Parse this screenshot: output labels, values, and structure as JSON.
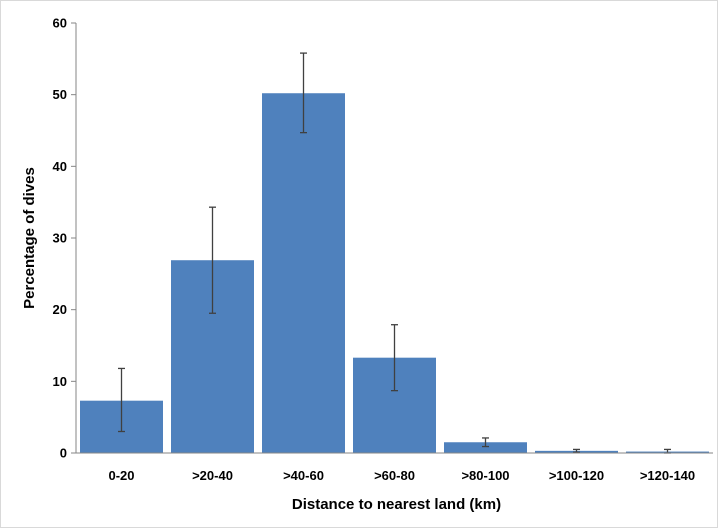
{
  "chart_data": {
    "type": "bar",
    "title": "",
    "xlabel": "Distance to nearest land (km)",
    "ylabel": "Percentage of dives",
    "categories": [
      "0-20",
      ">20-40",
      ">40-60",
      ">60-80",
      ">80-100",
      ">100-120",
      ">120-140"
    ],
    "values": [
      7.3,
      26.9,
      50.2,
      13.3,
      1.5,
      0.3,
      0.2
    ],
    "error_low": [
      3.0,
      19.5,
      44.7,
      8.7,
      0.9,
      0.1,
      0.0
    ],
    "error_high": [
      11.8,
      34.3,
      55.8,
      17.9,
      2.1,
      0.5,
      0.5
    ],
    "ylim": [
      0,
      60
    ],
    "yticks": [
      "0",
      "10",
      "20",
      "30",
      "40",
      "50",
      "60"
    ],
    "grid": false,
    "legend": "none",
    "bar_color": "#4F81BD",
    "error_color": "#404040"
  }
}
